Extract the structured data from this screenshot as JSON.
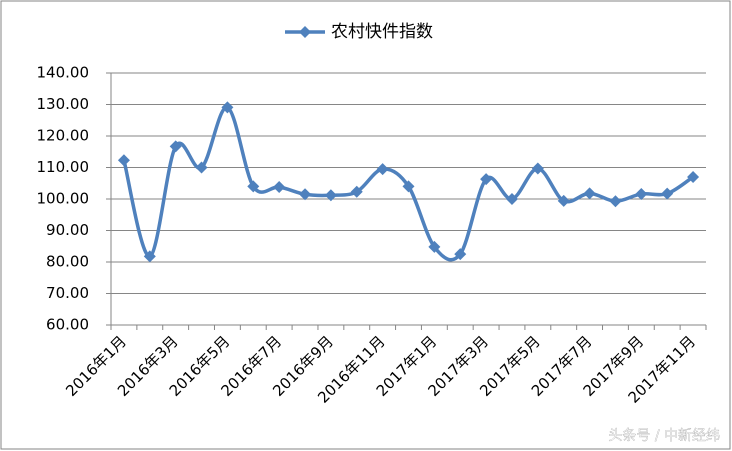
{
  "chart_data": {
    "type": "line",
    "title": "农村快件指数",
    "categories": [
      "2016年1月",
      null,
      "2016年3月",
      null,
      "2016年5月",
      null,
      "2016年7月",
      null,
      "2016年9月",
      null,
      "2016年11月",
      null,
      "2017年1月",
      null,
      "2017年3月",
      null,
      "2017年5月",
      null,
      "2017年7月",
      null,
      "2017年9月",
      null,
      "2017年11月"
    ],
    "series": [
      {
        "name": "农村快件指数",
        "color": "#4f81bd",
        "values": [
          112.3,
          81.8,
          116.7,
          110.0,
          129.1,
          104.0,
          103.8,
          101.5,
          101.2,
          102.3,
          109.5,
          104.0,
          84.8,
          82.5,
          106.3,
          100.0,
          109.7,
          99.4,
          101.8,
          99.3,
          101.6,
          101.7,
          107.0
        ]
      }
    ],
    "ylim": [
      60,
      140
    ],
    "yticks": [
      {
        "value": 60,
        "label": "60.00"
      },
      {
        "value": 70,
        "label": "70.00"
      },
      {
        "value": 80,
        "label": "80.00"
      },
      {
        "value": 90,
        "label": "90.00"
      },
      {
        "value": 100,
        "label": "100.00"
      },
      {
        "value": 110,
        "label": "110.00"
      },
      {
        "value": 120,
        "label": "120.00"
      },
      {
        "value": 130,
        "label": "130.00"
      },
      {
        "value": 140,
        "label": "140.00"
      }
    ],
    "grid": true,
    "legend": "top",
    "smooth": true
  },
  "watermark": "头条号 / 中新经纬"
}
